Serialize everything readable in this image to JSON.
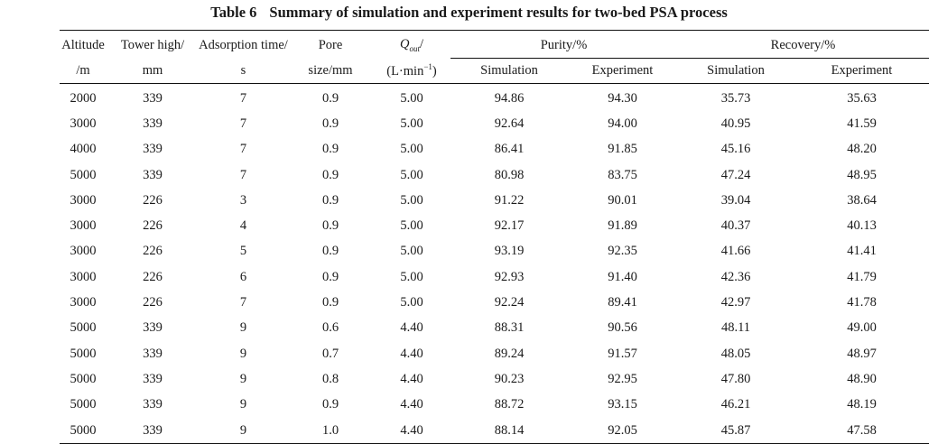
{
  "table": {
    "caption_number": "Table 6",
    "caption_title": "Summary of simulation and experiment results for two-bed PSA process",
    "headers": {
      "altitude": "Altitude",
      "altitude_unit": "/m",
      "tower": "Tower high/",
      "tower_unit": "mm",
      "adsorption": "Adsorption time/",
      "adsorption_unit": "s",
      "pore": "Pore",
      "pore_unit": "size/mm",
      "q_symbol": "Q",
      "q_sub": "out",
      "q_slash": "/",
      "q_unit_pre": "(L·min",
      "q_unit_sup": "−1",
      "q_unit_post": ")",
      "purity": "Purity/%",
      "recovery": "Recovery/%",
      "simulation": "Simulation",
      "experiment": "Experiment"
    },
    "rows": [
      [
        "2000",
        "339",
        "7",
        "0.9",
        "5.00",
        "94.86",
        "94.30",
        "35.73",
        "35.63"
      ],
      [
        "3000",
        "339",
        "7",
        "0.9",
        "5.00",
        "92.64",
        "94.00",
        "40.95",
        "41.59"
      ],
      [
        "4000",
        "339",
        "7",
        "0.9",
        "5.00",
        "86.41",
        "91.85",
        "45.16",
        "48.20"
      ],
      [
        "5000",
        "339",
        "7",
        "0.9",
        "5.00",
        "80.98",
        "83.75",
        "47.24",
        "48.95"
      ],
      [
        "3000",
        "226",
        "3",
        "0.9",
        "5.00",
        "91.22",
        "90.01",
        "39.04",
        "38.64"
      ],
      [
        "3000",
        "226",
        "4",
        "0.9",
        "5.00",
        "92.17",
        "91.89",
        "40.37",
        "40.13"
      ],
      [
        "3000",
        "226",
        "5",
        "0.9",
        "5.00",
        "93.19",
        "92.35",
        "41.66",
        "41.41"
      ],
      [
        "3000",
        "226",
        "6",
        "0.9",
        "5.00",
        "92.93",
        "91.40",
        "42.36",
        "41.79"
      ],
      [
        "3000",
        "226",
        "7",
        "0.9",
        "5.00",
        "92.24",
        "89.41",
        "42.97",
        "41.78"
      ],
      [
        "5000",
        "339",
        "9",
        "0.6",
        "4.40",
        "88.31",
        "90.56",
        "48.11",
        "49.00"
      ],
      [
        "5000",
        "339",
        "9",
        "0.7",
        "4.40",
        "89.24",
        "91.57",
        "48.05",
        "48.97"
      ],
      [
        "5000",
        "339",
        "9",
        "0.8",
        "4.40",
        "90.23",
        "92.95",
        "47.80",
        "48.90"
      ],
      [
        "5000",
        "339",
        "9",
        "0.9",
        "4.40",
        "88.72",
        "93.15",
        "46.21",
        "48.19"
      ],
      [
        "5000",
        "339",
        "9",
        "1.0",
        "4.40",
        "88.14",
        "92.05",
        "45.87",
        "47.58"
      ]
    ]
  }
}
